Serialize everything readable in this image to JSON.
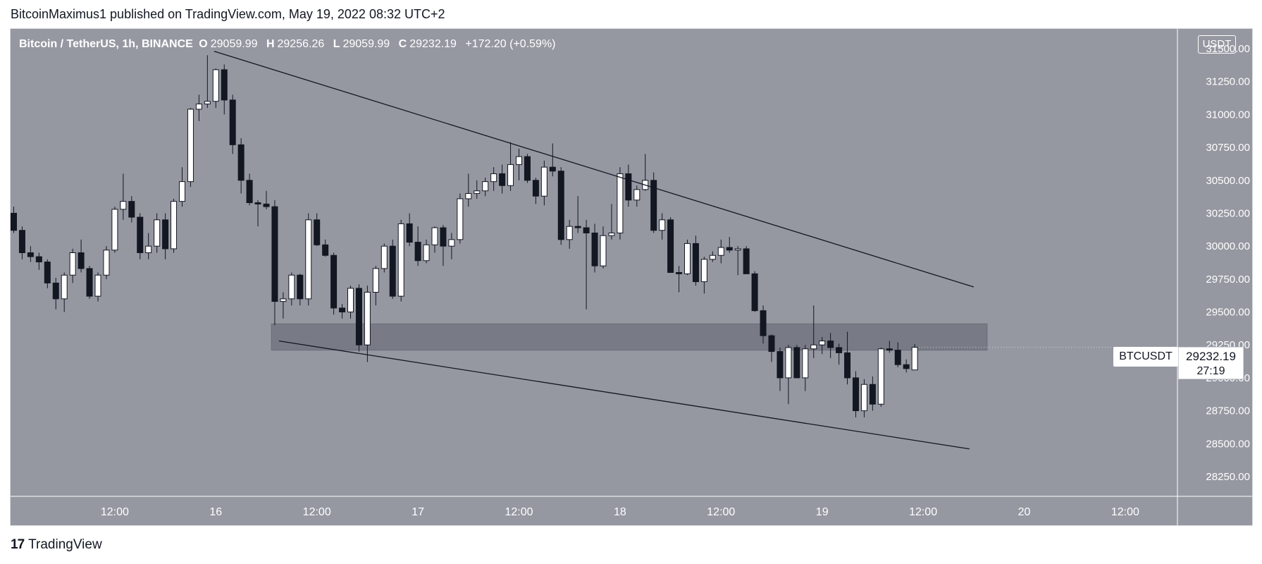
{
  "header": {
    "published_line": "BitcoinMaximus1 published on TradingView.com, May 19, 2022 08:32 UTC+2"
  },
  "legend": {
    "symbol": "Bitcoin / TetherUS, 1h, BINANCE",
    "open_label": "O",
    "open": "29059.99",
    "high_label": "H",
    "high": "29256.26",
    "low_label": "L",
    "low": "29059.99",
    "close_label": "C",
    "close": "29232.19",
    "change": "+172.20 (+0.59%)"
  },
  "currency_button": "USDT",
  "last_price": {
    "symbol": "BTCUSDT",
    "price": "29232.19",
    "countdown": "27:19"
  },
  "footer": {
    "logo_mark": "17",
    "brand": "TradingView"
  },
  "colors": {
    "plot_bg": "#9598a1",
    "band": "#787b86",
    "bull": "#ffffff",
    "bear": "#131722",
    "text_on_plot": "#ffffff"
  },
  "chart_data": {
    "type": "candlestick",
    "ylim": [
      28100,
      31650
    ],
    "yticks": [
      "31500.00",
      "31250.00",
      "31000.00",
      "30750.00",
      "30500.00",
      "30250.00",
      "30000.00",
      "29750.00",
      "29500.00",
      "29250.00",
      "29000.00",
      "28750.00",
      "28500.00",
      "28250.00"
    ],
    "xticks": [
      {
        "label": "12:00",
        "h": 12
      },
      {
        "label": "16",
        "h": 24
      },
      {
        "label": "12:00",
        "h": 36
      },
      {
        "label": "17",
        "h": 48
      },
      {
        "label": "12:00",
        "h": 60
      },
      {
        "label": "18",
        "h": 72
      },
      {
        "label": "12:00",
        "h": 84
      },
      {
        "label": "19",
        "h": 96
      },
      {
        "label": "12:00",
        "h": 108
      },
      {
        "label": "20",
        "h": 120
      },
      {
        "label": "12:00",
        "h": 132
      }
    ],
    "candles": [
      [
        30250,
        30300,
        30100,
        30120
      ],
      [
        30120,
        30150,
        29900,
        29950
      ],
      [
        29950,
        30000,
        29880,
        29920
      ],
      [
        29920,
        29950,
        29820,
        29880
      ],
      [
        29880,
        29900,
        29680,
        29720
      ],
      [
        29720,
        29760,
        29520,
        29600
      ],
      [
        29600,
        29800,
        29500,
        29780
      ],
      [
        29780,
        29980,
        29720,
        29950
      ],
      [
        29950,
        30050,
        29800,
        29830
      ],
      [
        29830,
        29850,
        29600,
        29620
      ],
      [
        29620,
        29800,
        29580,
        29780
      ],
      [
        29780,
        30000,
        29750,
        29970
      ],
      [
        29970,
        30300,
        29950,
        30280
      ],
      [
        30280,
        30550,
        30200,
        30340
      ],
      [
        30340,
        30380,
        30180,
        30220
      ],
      [
        30220,
        30250,
        29900,
        29950
      ],
      [
        29950,
        30100,
        29900,
        30000
      ],
      [
        30000,
        30250,
        29950,
        30200
      ],
      [
        30200,
        30250,
        29900,
        29980
      ],
      [
        29980,
        30360,
        29950,
        30340
      ],
      [
        30340,
        30600,
        30300,
        30490
      ],
      [
        30490,
        31050,
        30450,
        31040
      ],
      [
        31040,
        31150,
        30950,
        31080
      ],
      [
        31080,
        31450,
        31050,
        31100
      ],
      [
        31100,
        31350,
        31050,
        31340
      ],
      [
        31340,
        31380,
        31000,
        31110
      ],
      [
        31110,
        31150,
        30700,
        30770
      ],
      [
        30770,
        30820,
        30400,
        30500
      ],
      [
        30500,
        30550,
        30310,
        30330
      ],
      [
        30330,
        30350,
        30150,
        30320
      ],
      [
        30320,
        30420,
        30280,
        30300
      ],
      [
        30300,
        30350,
        29400,
        29580
      ],
      [
        29580,
        29650,
        29450,
        29600
      ],
      [
        29600,
        29800,
        29550,
        29780
      ],
      [
        29780,
        29790,
        29550,
        29600
      ],
      [
        29600,
        30250,
        29550,
        30200
      ],
      [
        30200,
        30250,
        30000,
        30010
      ],
      [
        30010,
        30050,
        29920,
        29930
      ],
      [
        29930,
        29950,
        29480,
        29530
      ],
      [
        29530,
        29560,
        29450,
        29500
      ],
      [
        29500,
        29700,
        29450,
        29680
      ],
      [
        29680,
        29710,
        29200,
        29250
      ],
      [
        29250,
        29700,
        29120,
        29650
      ],
      [
        29650,
        29850,
        29550,
        29830
      ],
      [
        29830,
        30020,
        29800,
        30000
      ],
      [
        30000,
        30050,
        29600,
        29620
      ],
      [
        29620,
        30200,
        29580,
        30170
      ],
      [
        30170,
        30250,
        30000,
        30030
      ],
      [
        30030,
        30150,
        29850,
        29890
      ],
      [
        29890,
        30050,
        29870,
        30010
      ],
      [
        30010,
        30150,
        29950,
        30140
      ],
      [
        30140,
        30160,
        29850,
        30000
      ],
      [
        30000,
        30100,
        29900,
        30050
      ],
      [
        30050,
        30400,
        30020,
        30360
      ],
      [
        30360,
        30550,
        30300,
        30400
      ],
      [
        30400,
        30500,
        30360,
        30420
      ],
      [
        30420,
        30520,
        30380,
        30490
      ],
      [
        30490,
        30600,
        30420,
        30550
      ],
      [
        30550,
        30620,
        30400,
        30460
      ],
      [
        30460,
        30790,
        30420,
        30620
      ],
      [
        30620,
        30740,
        30500,
        30680
      ],
      [
        30680,
        30700,
        30480,
        30500
      ],
      [
        30500,
        30520,
        30320,
        30380
      ],
      [
        30380,
        30650,
        30310,
        30600
      ],
      [
        30600,
        30780,
        30530,
        30570
      ],
      [
        30570,
        30600,
        30010,
        30050
      ],
      [
        30050,
        30200,
        29980,
        30150
      ],
      [
        30150,
        30380,
        30100,
        30140
      ],
      [
        30140,
        30200,
        29520,
        30100
      ],
      [
        30100,
        30170,
        29800,
        29850
      ],
      [
        29850,
        30150,
        29830,
        30080
      ],
      [
        30080,
        30320,
        30050,
        30100
      ],
      [
        30100,
        30600,
        30050,
        30550
      ],
      [
        30550,
        30620,
        30300,
        30350
      ],
      [
        30350,
        30460,
        30300,
        30430
      ],
      [
        30430,
        30700,
        30420,
        30500
      ],
      [
        30500,
        30560,
        30100,
        30120
      ],
      [
        30120,
        30250,
        30050,
        30200
      ],
      [
        30200,
        30220,
        29800,
        29800
      ],
      [
        29800,
        29850,
        29650,
        29790
      ],
      [
        29790,
        30050,
        29780,
        30020
      ],
      [
        30020,
        30080,
        29700,
        29730
      ],
      [
        29730,
        29920,
        29640,
        29900
      ],
      [
        29900,
        29960,
        29880,
        29930
      ],
      [
        29930,
        30050,
        29870,
        29990
      ],
      [
        29990,
        30070,
        29950,
        29970
      ],
      [
        29970,
        30000,
        29780,
        29980
      ],
      [
        29980,
        30000,
        29800,
        29790
      ],
      [
        29790,
        29810,
        29500,
        29510
      ],
      [
        29510,
        29550,
        29260,
        29320
      ],
      [
        29320,
        29330,
        29120,
        29200
      ],
      [
        29200,
        29230,
        28900,
        29000
      ],
      [
        29000,
        29250,
        28800,
        29230
      ],
      [
        29230,
        29250,
        29000,
        29000
      ],
      [
        29000,
        29250,
        28900,
        29220
      ],
      [
        29220,
        29550,
        29150,
        29250
      ],
      [
        29250,
        29310,
        29180,
        29280
      ],
      [
        29280,
        29340,
        29150,
        29230
      ],
      [
        29230,
        29260,
        29100,
        29190
      ],
      [
        29190,
        29350,
        28950,
        29000
      ],
      [
        29000,
        29050,
        28700,
        28750
      ],
      [
        28750,
        28990,
        28700,
        28950
      ],
      [
        28950,
        29010,
        28750,
        28800
      ],
      [
        28800,
        29230,
        28780,
        29220
      ],
      [
        29220,
        29280,
        29190,
        29210
      ],
      [
        29210,
        29270,
        29080,
        29100
      ],
      [
        29100,
        29140,
        29040,
        29070
      ],
      [
        29060,
        29256,
        29060,
        29232
      ]
    ],
    "annotations": {
      "upper_trendline": [
        [
          23.8,
          31480
        ],
        [
          114,
          29690
        ]
      ],
      "lower_trendline": [
        [
          31.5,
          29280
        ],
        [
          113.5,
          28460
        ]
      ],
      "zone": {
        "from_h": 30.6,
        "to_h": 115.6,
        "price_low": 29210,
        "price_high": 29410
      }
    }
  }
}
